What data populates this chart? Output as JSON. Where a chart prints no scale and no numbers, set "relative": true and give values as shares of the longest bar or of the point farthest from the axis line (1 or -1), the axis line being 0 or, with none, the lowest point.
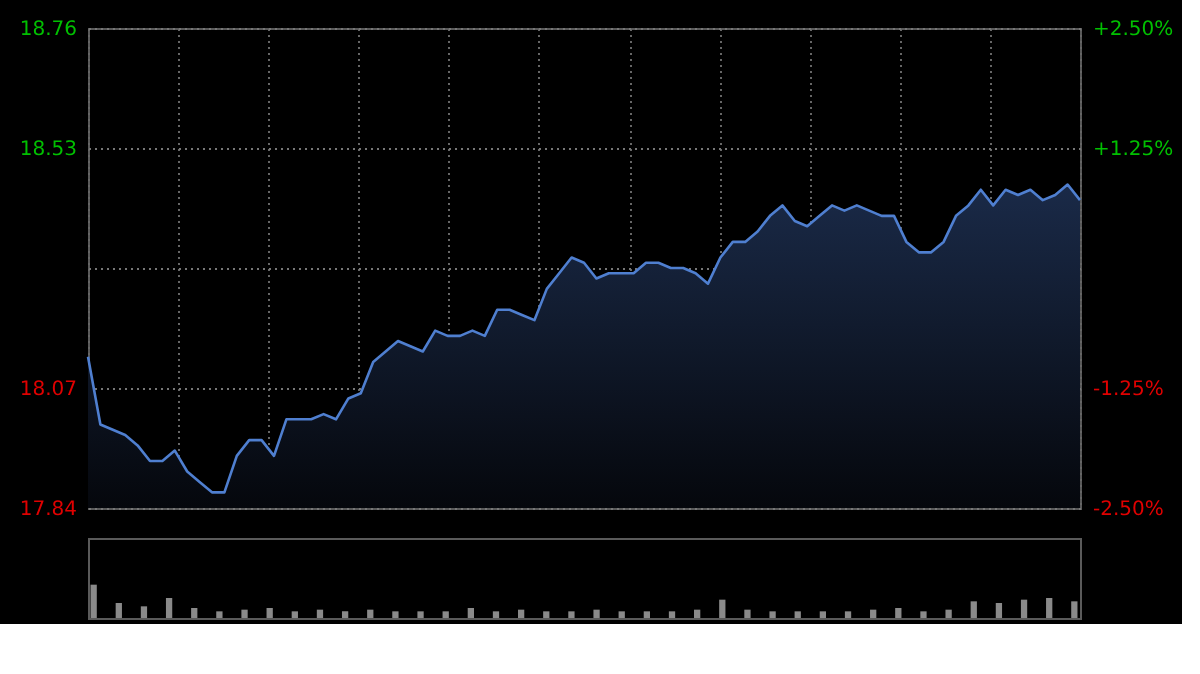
{
  "chart_data": [
    {
      "type": "area",
      "categories": [
        null,
        null,
        null,
        null,
        null,
        null,
        null,
        null,
        null,
        null,
        null,
        null,
        null,
        null,
        null,
        null,
        null,
        null,
        null,
        null,
        null,
        null,
        null,
        null,
        null,
        null,
        null,
        null,
        null,
        null,
        null,
        null,
        null,
        null,
        null,
        null,
        null,
        null,
        null,
        null,
        null,
        null,
        null,
        null,
        null,
        null,
        null,
        null,
        null,
        null,
        null,
        null,
        null,
        null,
        null,
        null,
        null,
        null,
        null,
        null,
        null,
        null,
        null,
        null,
        null,
        null,
        null,
        null,
        null,
        null,
        null,
        null,
        null,
        null,
        null,
        null,
        null,
        null,
        null,
        null,
        null
      ],
      "series": [
        {
          "color": "#4f7fd0",
          "values": [
            18.13,
            18.0,
            17.99,
            17.98,
            17.96,
            17.93,
            17.93,
            17.95,
            17.91,
            17.89,
            17.87,
            17.87,
            17.94,
            17.97,
            17.97,
            17.94,
            18.01,
            18.01,
            18.01,
            18.02,
            18.01,
            18.05,
            18.06,
            18.12,
            18.14,
            18.16,
            18.15,
            18.14,
            18.18,
            18.17,
            18.17,
            18.18,
            18.17,
            18.22,
            18.22,
            18.21,
            18.2,
            18.26,
            18.29,
            18.32,
            18.31,
            18.28,
            18.29,
            18.29,
            18.29,
            18.31,
            18.31,
            18.3,
            18.3,
            18.29,
            18.27,
            18.32,
            18.35,
            18.35,
            18.37,
            18.4,
            18.42,
            18.39,
            18.38,
            18.4,
            18.42,
            18.41,
            18.42,
            18.41,
            18.4,
            18.4,
            18.35,
            18.33,
            18.33,
            18.35,
            18.4,
            18.42,
            18.45,
            18.42,
            18.45,
            18.44,
            18.45,
            18.43,
            18.44,
            18.46,
            18.43
          ]
        }
      ],
      "ylim": [
        17.84,
        18.76
      ],
      "yticks": [
        17.84,
        18.07,
        {
          "value": 18.3,
          "label": null
        },
        18.53,
        18.76
      ],
      "y2lim": [
        -2.5,
        2.5
      ],
      "y2ticks": [
        {
          "value": -2.5,
          "label": "-2.50%"
        },
        {
          "value": -1.25,
          "label": "-1.25%"
        },
        {
          "value": 0,
          "label": null
        },
        {
          "value": 1.25,
          "label": "+1.25%"
        },
        {
          "value": 2.5,
          "label": "+2.50%"
        }
      ],
      "tick_labels": "y",
      "grid": true,
      "line_style": "solid"
    },
    {
      "type": "bar",
      "relative": true,
      "color": "#8a8a8a",
      "categories": [
        null,
        null,
        null,
        null,
        null,
        null,
        null,
        null,
        null,
        null,
        null,
        null,
        null,
        null,
        null,
        null,
        null,
        null,
        null,
        null,
        null,
        null,
        null,
        null,
        null,
        null,
        null,
        null,
        null,
        null,
        null,
        null,
        null,
        null,
        null,
        null,
        null,
        null,
        null,
        null
      ],
      "values": [
        1,
        0.45,
        0.35,
        0.6,
        0.3,
        0.2,
        0.25,
        0.3,
        0.2,
        0.25,
        0.2,
        0.25,
        0.2,
        0.2,
        0.2,
        0.3,
        0.2,
        0.25,
        0.2,
        0.2,
        0.25,
        0.2,
        0.2,
        0.2,
        0.25,
        0.55,
        0.25,
        0.2,
        0.2,
        0.2,
        0.2,
        0.25,
        0.3,
        0.2,
        0.25,
        0.5,
        0.45,
        0.55,
        0.6,
        0.5
      ]
    }
  ]
}
